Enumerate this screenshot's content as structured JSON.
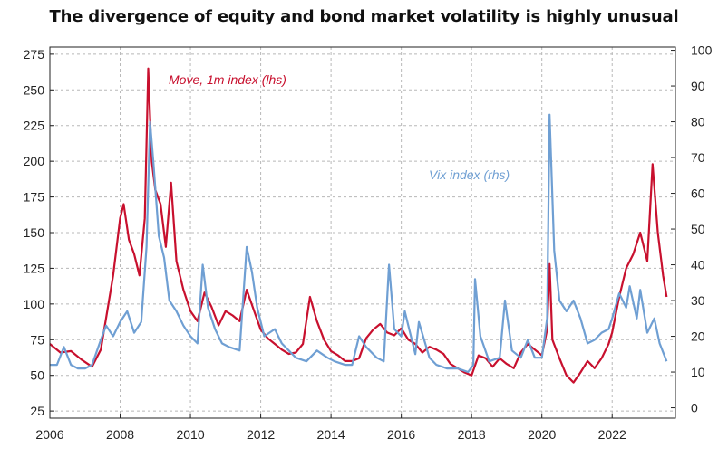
{
  "chart_data": {
    "type": "line",
    "title": "The divergence of equity and bond market volatility is highly unusual",
    "x_axis": {
      "min": 2006,
      "max": 2023.8,
      "ticks": [
        "2006",
        "2008",
        "2010",
        "2012",
        "2014",
        "2016",
        "2018",
        "2020",
        "2022"
      ]
    },
    "y_left": {
      "min": 20,
      "max": 280,
      "ticks": [
        "25",
        "50",
        "75",
        "100",
        "125",
        "150",
        "175",
        "200",
        "225",
        "250",
        "275"
      ]
    },
    "y_right": {
      "min": -2.9,
      "max": 100.9,
      "ticks": [
        "0",
        "10",
        "20",
        "30",
        "40",
        "50",
        "60",
        "70",
        "80",
        "90",
        "100"
      ]
    },
    "grid": true,
    "series": [
      {
        "name": "Move, 1m index (lhs)",
        "axis": "left",
        "color": "#c8102e",
        "points": [
          [
            2006.0,
            72
          ],
          [
            2006.3,
            66
          ],
          [
            2006.6,
            67
          ],
          [
            2006.9,
            61
          ],
          [
            2007.2,
            56
          ],
          [
            2007.45,
            68
          ],
          [
            2007.6,
            90
          ],
          [
            2007.8,
            120
          ],
          [
            2008.0,
            160
          ],
          [
            2008.1,
            170
          ],
          [
            2008.25,
            145
          ],
          [
            2008.4,
            135
          ],
          [
            2008.55,
            120
          ],
          [
            2008.7,
            160
          ],
          [
            2008.8,
            265
          ],
          [
            2008.9,
            200
          ],
          [
            2009.0,
            180
          ],
          [
            2009.15,
            170
          ],
          [
            2009.3,
            140
          ],
          [
            2009.45,
            185
          ],
          [
            2009.6,
            130
          ],
          [
            2009.8,
            110
          ],
          [
            2010.0,
            95
          ],
          [
            2010.2,
            88
          ],
          [
            2010.4,
            108
          ],
          [
            2010.6,
            98
          ],
          [
            2010.8,
            85
          ],
          [
            2011.0,
            95
          ],
          [
            2011.2,
            92
          ],
          [
            2011.4,
            88
          ],
          [
            2011.6,
            110
          ],
          [
            2011.8,
            96
          ],
          [
            2012.0,
            82
          ],
          [
            2012.2,
            76
          ],
          [
            2012.4,
            72
          ],
          [
            2012.6,
            68
          ],
          [
            2012.8,
            65
          ],
          [
            2013.0,
            66
          ],
          [
            2013.2,
            72
          ],
          [
            2013.4,
            105
          ],
          [
            2013.6,
            88
          ],
          [
            2013.8,
            75
          ],
          [
            2014.0,
            67
          ],
          [
            2014.2,
            64
          ],
          [
            2014.4,
            60
          ],
          [
            2014.6,
            60
          ],
          [
            2014.8,
            62
          ],
          [
            2015.0,
            76
          ],
          [
            2015.2,
            82
          ],
          [
            2015.4,
            86
          ],
          [
            2015.6,
            80
          ],
          [
            2015.8,
            78
          ],
          [
            2016.0,
            83
          ],
          [
            2016.2,
            75
          ],
          [
            2016.4,
            72
          ],
          [
            2016.6,
            66
          ],
          [
            2016.8,
            70
          ],
          [
            2017.0,
            68
          ],
          [
            2017.2,
            65
          ],
          [
            2017.4,
            58
          ],
          [
            2017.6,
            55
          ],
          [
            2017.8,
            52
          ],
          [
            2018.0,
            50
          ],
          [
            2018.2,
            64
          ],
          [
            2018.4,
            62
          ],
          [
            2018.6,
            56
          ],
          [
            2018.8,
            62
          ],
          [
            2019.0,
            58
          ],
          [
            2019.2,
            55
          ],
          [
            2019.4,
            66
          ],
          [
            2019.6,
            72
          ],
          [
            2019.8,
            68
          ],
          [
            2020.0,
            64
          ],
          [
            2020.15,
            82
          ],
          [
            2020.22,
            128
          ],
          [
            2020.3,
            75
          ],
          [
            2020.5,
            62
          ],
          [
            2020.7,
            50
          ],
          [
            2020.9,
            45
          ],
          [
            2021.1,
            52
          ],
          [
            2021.3,
            60
          ],
          [
            2021.5,
            55
          ],
          [
            2021.7,
            62
          ],
          [
            2021.9,
            72
          ],
          [
            2022.0,
            80
          ],
          [
            2022.2,
            105
          ],
          [
            2022.4,
            125
          ],
          [
            2022.6,
            135
          ],
          [
            2022.8,
            150
          ],
          [
            2023.0,
            130
          ],
          [
            2023.15,
            198
          ],
          [
            2023.3,
            150
          ],
          [
            2023.45,
            120
          ],
          [
            2023.55,
            105
          ]
        ]
      },
      {
        "name": "Vix index (rhs)",
        "axis": "right",
        "color": "#6f9fd3",
        "points": [
          [
            2006.0,
            12
          ],
          [
            2006.2,
            12
          ],
          [
            2006.4,
            17
          ],
          [
            2006.6,
            12
          ],
          [
            2006.8,
            11
          ],
          [
            2007.0,
            11
          ],
          [
            2007.2,
            12
          ],
          [
            2007.45,
            19
          ],
          [
            2007.6,
            23
          ],
          [
            2007.8,
            20
          ],
          [
            2008.0,
            24
          ],
          [
            2008.2,
            27
          ],
          [
            2008.4,
            21
          ],
          [
            2008.6,
            24
          ],
          [
            2008.75,
            45
          ],
          [
            2008.85,
            80
          ],
          [
            2008.95,
            68
          ],
          [
            2009.1,
            48
          ],
          [
            2009.25,
            42
          ],
          [
            2009.4,
            30
          ],
          [
            2009.6,
            27
          ],
          [
            2009.8,
            23
          ],
          [
            2010.0,
            20
          ],
          [
            2010.2,
            18
          ],
          [
            2010.35,
            40
          ],
          [
            2010.5,
            28
          ],
          [
            2010.7,
            22
          ],
          [
            2010.9,
            18
          ],
          [
            2011.1,
            17
          ],
          [
            2011.4,
            16
          ],
          [
            2011.6,
            45
          ],
          [
            2011.75,
            38
          ],
          [
            2011.9,
            28
          ],
          [
            2012.1,
            20
          ],
          [
            2012.4,
            22
          ],
          [
            2012.6,
            18
          ],
          [
            2012.8,
            16
          ],
          [
            2013.0,
            14
          ],
          [
            2013.3,
            13
          ],
          [
            2013.6,
            16
          ],
          [
            2013.9,
            14
          ],
          [
            2014.1,
            13
          ],
          [
            2014.4,
            12
          ],
          [
            2014.6,
            12
          ],
          [
            2014.8,
            20
          ],
          [
            2015.0,
            17
          ],
          [
            2015.3,
            14
          ],
          [
            2015.5,
            13
          ],
          [
            2015.65,
            40
          ],
          [
            2015.8,
            22
          ],
          [
            2016.0,
            20
          ],
          [
            2016.1,
            27
          ],
          [
            2016.4,
            15
          ],
          [
            2016.5,
            24
          ],
          [
            2016.8,
            14
          ],
          [
            2017.0,
            12
          ],
          [
            2017.3,
            11
          ],
          [
            2017.6,
            11
          ],
          [
            2017.9,
            10
          ],
          [
            2018.05,
            12
          ],
          [
            2018.1,
            36
          ],
          [
            2018.25,
            20
          ],
          [
            2018.5,
            13
          ],
          [
            2018.8,
            14
          ],
          [
            2018.95,
            30
          ],
          [
            2019.15,
            16
          ],
          [
            2019.4,
            14
          ],
          [
            2019.6,
            19
          ],
          [
            2019.8,
            14
          ],
          [
            2020.0,
            14
          ],
          [
            2020.15,
            25
          ],
          [
            2020.22,
            82
          ],
          [
            2020.35,
            44
          ],
          [
            2020.5,
            30
          ],
          [
            2020.7,
            27
          ],
          [
            2020.9,
            30
          ],
          [
            2021.1,
            25
          ],
          [
            2021.3,
            18
          ],
          [
            2021.5,
            19
          ],
          [
            2021.7,
            21
          ],
          [
            2021.9,
            22
          ],
          [
            2022.0,
            25
          ],
          [
            2022.2,
            32
          ],
          [
            2022.4,
            28
          ],
          [
            2022.5,
            34
          ],
          [
            2022.7,
            25
          ],
          [
            2022.8,
            33
          ],
          [
            2023.0,
            21
          ],
          [
            2023.2,
            25
          ],
          [
            2023.35,
            18
          ],
          [
            2023.55,
            13
          ]
        ]
      }
    ]
  }
}
